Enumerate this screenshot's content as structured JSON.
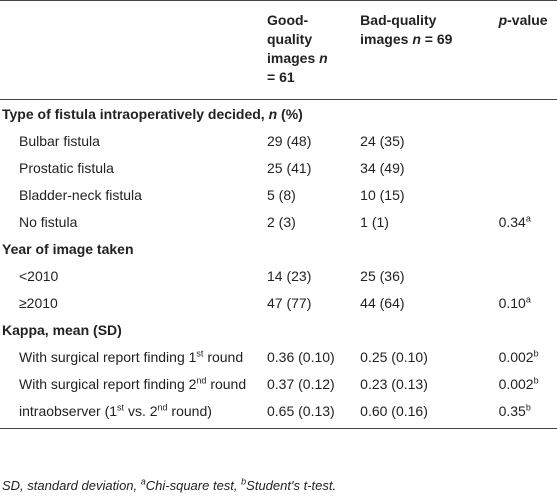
{
  "table": {
    "header": [
      [
        {
          "text": "p",
          "style": "italic"
        },
        "-value"
      ]
    ],
    "columns": [
      [
        "Good-quality images ",
        {
          "text": "n",
          "style": "italic"
        },
        " = 61"
      ],
      [
        "Bad-quality images ",
        {
          "text": "n",
          "style": "italic"
        },
        " = 69"
      ],
      [
        {
          "text": "p",
          "style": "italic"
        },
        "-value"
      ]
    ],
    "sections": [
      {
        "title": [
          "Type of fistula intraoperatively decided, ",
          {
            "text": "n",
            "style": "italic"
          },
          " (%)"
        ],
        "rows": [
          [
            [
              "Bulbar fistula"
            ],
            [
              "29 (48)"
            ],
            [
              "24 (35)"
            ]
          ],
          [
            [
              "Prostatic fistula"
            ],
            [
              "25 (41)"
            ],
            [
              "34 (49)"
            ]
          ],
          [
            [
              "Bladder-neck fistula"
            ],
            [
              "5 (8)"
            ],
            [
              "10 (15)"
            ]
          ],
          [
            [
              "No fistula"
            ],
            [
              "2 (3)"
            ],
            [
              "1 (1)"
            ],
            [
              "0.34",
              {
                "text": "a",
                "style": "sup"
              }
            ]
          ]
        ]
      },
      {
        "title": [
          "Year of image taken"
        ],
        "rows": [
          [
            [
              "<2010"
            ],
            [
              "14 (23)"
            ],
            [
              "25 (36)"
            ]
          ],
          [
            [
              "≥2010"
            ],
            [
              "47 (77)"
            ],
            [
              "44 (64)"
            ],
            [
              "0.10",
              {
                "text": "a",
                "style": "sup"
              }
            ]
          ]
        ]
      },
      {
        "title": [
          "Kappa, mean (SD)"
        ],
        "rows": [
          [
            [
              "With surgical report finding 1",
              {
                "text": "st",
                "style": "sup"
              },
              " round"
            ],
            [
              "0.36 (0.10)"
            ],
            [
              "0.25 (0.10)"
            ],
            [
              "0.002",
              {
                "text": "b",
                "style": "sup"
              }
            ]
          ],
          [
            [
              "With surgical report finding 2",
              {
                "text": "nd",
                "style": "sup"
              },
              " round"
            ],
            [
              "0.37 (0.12)"
            ],
            [
              "0.23 (0.13)"
            ],
            [
              "0.002",
              {
                "text": "b",
                "style": "sup"
              }
            ]
          ],
          [
            [
              "intraobserver (1",
              {
                "text": "st",
                "style": "sup"
              },
              " vs. 2",
              {
                "text": "nd",
                "style": "sup"
              },
              " round)"
            ],
            [
              "0.65 (0.13)"
            ],
            [
              "0.60 (0.16)"
            ],
            [
              "0.35",
              {
                "text": "b",
                "style": "sup"
              }
            ]
          ]
        ]
      }
    ],
    "footnote": [
      "SD, standard deviation, ",
      {
        "text": "a",
        "style": "sup"
      },
      "Chi-square test, ",
      {
        "text": "b",
        "style": "sup"
      },
      "Student's t-test."
    ]
  }
}
